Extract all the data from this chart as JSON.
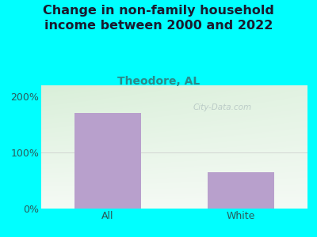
{
  "title": "Change in non-family household\nincome between 2000 and 2022",
  "subtitle": "Theodore, AL",
  "categories": [
    "All",
    "White"
  ],
  "values": [
    170,
    65
  ],
  "bar_color": "#b8a0cc",
  "background_color": "#00FFFF",
  "title_color": "#1a1a2e",
  "subtitle_color": "#2a8a8a",
  "tick_label_color": "#2a5a5a",
  "ylim": [
    0,
    220
  ],
  "yticks": [
    0,
    100,
    200
  ],
  "ytick_labels": [
    "0%",
    "100%",
    "200%"
  ],
  "watermark": "City-Data.com",
  "title_fontsize": 11.5,
  "subtitle_fontsize": 10,
  "tick_fontsize": 9,
  "grad_topleft": "#c8e8c8",
  "grad_topright": "#e8f0e8",
  "grad_bottomleft": "#d8efd8",
  "grad_bottomright": "#f0f5f0"
}
